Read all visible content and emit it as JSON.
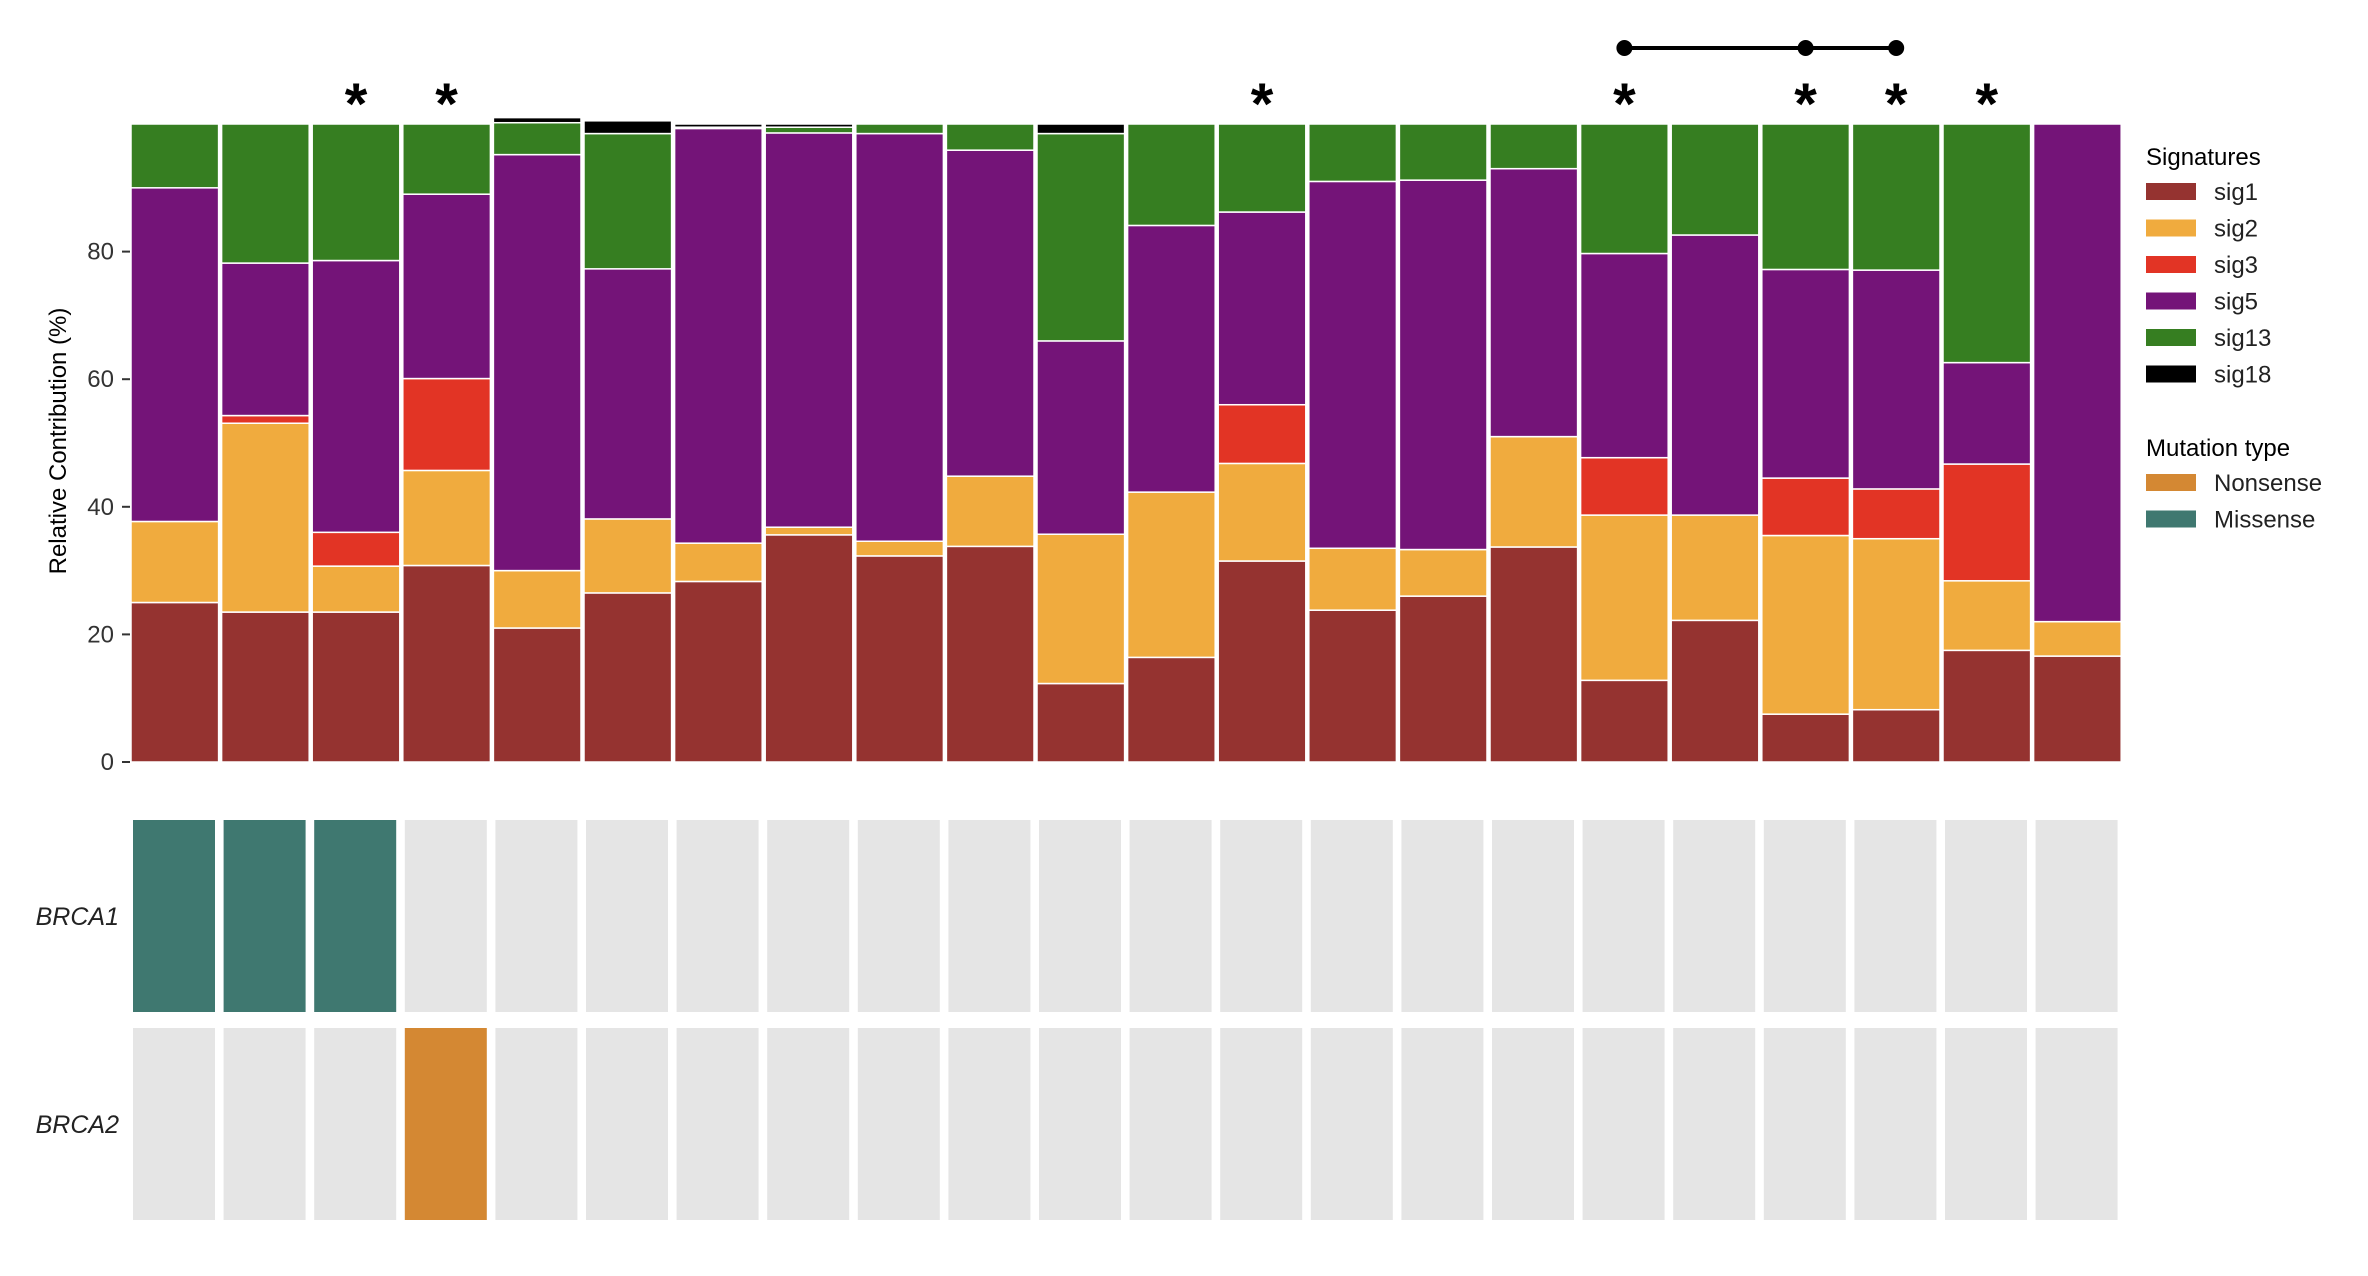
{
  "chart_data": {
    "type": "bar",
    "stacked": true,
    "ylabel": "Relative Contribution (%)",
    "ylim": [
      0,
      100
    ],
    "yticks": [
      0,
      20,
      40,
      60,
      80
    ],
    "grid": false,
    "legend_position": "right",
    "series": [
      {
        "name": "sig1",
        "color": "#953330",
        "values": [
          25,
          23.5,
          23.5,
          30.8,
          21,
          26.5,
          28.3,
          35.6,
          32.3,
          33.8,
          12.3,
          16.4,
          31.5,
          23.8,
          26,
          33.7,
          12.8,
          22.2,
          7.5,
          8.2,
          17.5,
          16.6
        ]
      },
      {
        "name": "sig2",
        "color": "#F0AB3E",
        "values": [
          12.7,
          29.6,
          7.2,
          14.9,
          9,
          11.6,
          6,
          1.2,
          2.3,
          11,
          23.4,
          25.9,
          15.3,
          9.7,
          7.3,
          17.3,
          25.9,
          16.5,
          28,
          26.8,
          10.9,
          5.4
        ]
      },
      {
        "name": "sig3",
        "color": "#E23425",
        "values": [
          0,
          1.2,
          5.3,
          14.4,
          0,
          0,
          0,
          0,
          0,
          0,
          0,
          0,
          9.2,
          0,
          0,
          0,
          9,
          0,
          9,
          7.8,
          18.3,
          0
        ]
      },
      {
        "name": "sig5",
        "color": "#741478",
        "values": [
          52.3,
          23.9,
          42.6,
          28.9,
          65.2,
          39.2,
          65,
          61.8,
          63.9,
          51.1,
          30.3,
          41.8,
          30.2,
          57.5,
          57.9,
          42,
          32,
          43.9,
          32.7,
          34.3,
          15.9,
          78
        ]
      },
      {
        "name": "sig13",
        "color": "#367E21",
        "values": [
          10,
          21.8,
          21.4,
          11,
          5,
          21.2,
          0.2,
          0.9,
          1.5,
          4.1,
          32.5,
          15.9,
          13.8,
          9,
          8.8,
          7,
          20.3,
          17.4,
          22.8,
          22.9,
          37.4,
          0
        ]
      },
      {
        "name": "sig18",
        "color": "#000000",
        "values": [
          0,
          0,
          0,
          0,
          0.8,
          2,
          0.5,
          0.5,
          0,
          0,
          1.5,
          0,
          0,
          0,
          0,
          0,
          0,
          0,
          0,
          0,
          0,
          0
        ]
      }
    ],
    "stars": [
      false,
      false,
      true,
      true,
      false,
      false,
      false,
      false,
      false,
      false,
      false,
      false,
      true,
      false,
      false,
      false,
      true,
      false,
      true,
      true,
      true,
      false
    ],
    "star_symbol": "*",
    "bracket_samples": [
      16,
      18,
      19
    ],
    "mutation_rows": [
      {
        "gene": "BRCA1",
        "cells": [
          "Missense",
          "Missense",
          "Missense",
          "",
          "",
          "",
          "",
          "",
          "",
          "",
          "",
          "",
          "",
          "",
          "",
          "",
          "",
          "",
          "",
          "",
          "",
          ""
        ]
      },
      {
        "gene": "BRCA2",
        "cells": [
          "",
          "",
          "",
          "Nonsense",
          "",
          "",
          "",
          "",
          "",
          "",
          "",
          "",
          "",
          "",
          "",
          "",
          "",
          "",
          "",
          "",
          "",
          ""
        ]
      }
    ],
    "mutation_types": [
      {
        "name": "Nonsense",
        "color": "#D48833"
      },
      {
        "name": "Missense",
        "color": "#3F7870"
      }
    ],
    "empty_cell_color": "#E5E5E5",
    "legend": {
      "signatures_title": "Signatures",
      "mutation_title": "Mutation type"
    }
  }
}
